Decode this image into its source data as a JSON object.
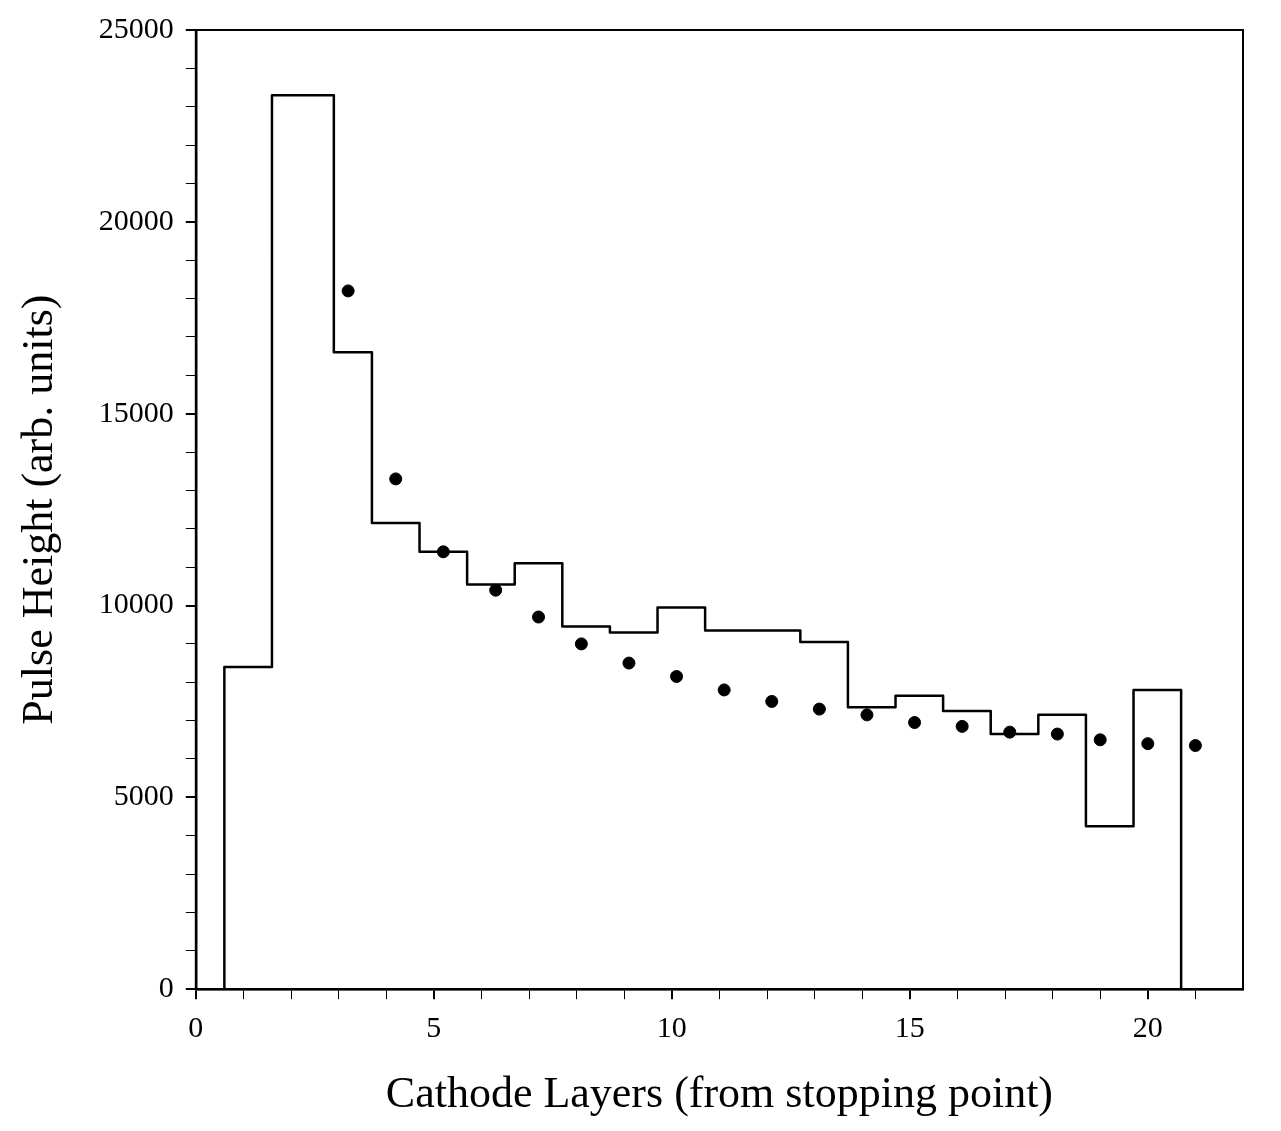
{
  "chart_data": {
    "type": "histogram",
    "xlabel": "Cathode Layers (from stopping point)",
    "ylabel": "Pulse Height (arb. units)",
    "xlim": [
      0,
      22
    ],
    "ylim": [
      0,
      25000
    ],
    "xticks": [
      0,
      {
        "value": 1,
        "label": null
      },
      {
        "value": 2,
        "label": null
      },
      {
        "value": 3,
        "label": null
      },
      {
        "value": 4,
        "label": null
      },
      5,
      {
        "value": 6,
        "label": null
      },
      {
        "value": 7,
        "label": null
      },
      {
        "value": 8,
        "label": null
      },
      {
        "value": 9,
        "label": null
      },
      10,
      {
        "value": 11,
        "label": null
      },
      {
        "value": 12,
        "label": null
      },
      {
        "value": 13,
        "label": null
      },
      {
        "value": 14,
        "label": null
      },
      15,
      {
        "value": 16,
        "label": null
      },
      {
        "value": 17,
        "label": null
      },
      {
        "value": 18,
        "label": null
      },
      {
        "value": 19,
        "label": null
      },
      20,
      {
        "value": 21,
        "label": null
      }
    ],
    "yticks": [
      0,
      {
        "value": 1000,
        "label": null
      },
      {
        "value": 2000,
        "label": null
      },
      {
        "value": 3000,
        "label": null
      },
      {
        "value": 4000,
        "label": null
      },
      5000,
      {
        "value": 6000,
        "label": null
      },
      {
        "value": 7000,
        "label": null
      },
      {
        "value": 8000,
        "label": null
      },
      {
        "value": 9000,
        "label": null
      },
      10000,
      {
        "value": 11000,
        "label": null
      },
      {
        "value": 12000,
        "label": null
      },
      {
        "value": 13000,
        "label": null
      },
      {
        "value": 14000,
        "label": null
      },
      15000,
      {
        "value": 16000,
        "label": null
      },
      {
        "value": 17000,
        "label": null
      },
      {
        "value": 18000,
        "label": null
      },
      {
        "value": 19000,
        "label": null
      },
      20000,
      {
        "value": 21000,
        "label": null
      },
      {
        "value": 22000,
        "label": null
      },
      {
        "value": 23000,
        "label": null
      },
      {
        "value": 24000,
        "label": null
      },
      25000
    ],
    "legend": false,
    "series": [
      {
        "color": "#000000",
        "bins": [
          0.6,
          1.6,
          2.9,
          3.7,
          4.7,
          5.7,
          6.7,
          7.7,
          8.7,
          9.7,
          10.7,
          11.7,
          12.7,
          13.7,
          14.7,
          15.7,
          16.7,
          17.7,
          18.7,
          19.7,
          20.7
        ],
        "values": [
          8400,
          23300,
          16600,
          12150,
          11400,
          10550,
          11100,
          9450,
          9300,
          9950,
          9350,
          9350,
          9050,
          7350,
          7650,
          7250,
          6650,
          7150,
          4250,
          7800
        ]
      },
      {
        "type": "scatter",
        "color": "#000000",
        "marker": "circle",
        "x": [
          3.2,
          4.2,
          5.2,
          6.3,
          7.2,
          8.1,
          9.1,
          10.1,
          11.1,
          12.1,
          13.1,
          14.1,
          15.1,
          16.1,
          17.1,
          18.1,
          19.0,
          20.0,
          21.0
        ],
        "values": [
          18200,
          13300,
          11400,
          10400,
          9700,
          9000,
          8500,
          8150,
          7800,
          7500,
          7300,
          7150,
          6950,
          6850,
          6700,
          6650,
          6500,
          6400,
          6350
        ]
      }
    ]
  }
}
